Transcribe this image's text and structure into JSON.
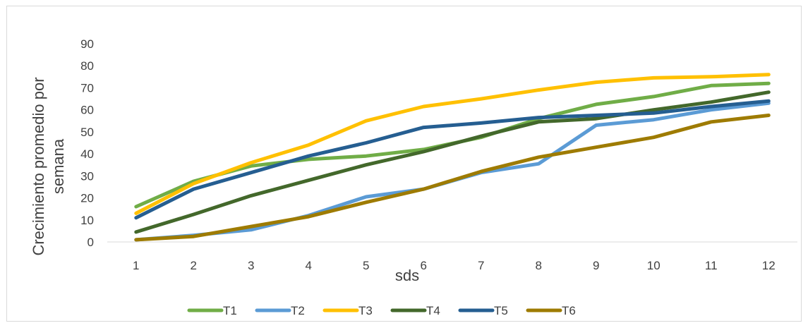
{
  "chart_data": {
    "type": "line",
    "title": "",
    "xlabel": "sds",
    "ylabel": "Crecimiento promedio por semana",
    "ylabel_lines": [
      "Crecimiento promedio por",
      "semana"
    ],
    "ylim": [
      0,
      90
    ],
    "yticks": [
      0,
      10,
      20,
      30,
      40,
      50,
      60,
      70,
      80,
      90
    ],
    "categories": [
      "1",
      "2",
      "3",
      "4",
      "5",
      "6",
      "7",
      "8",
      "9",
      "10",
      "11",
      "12"
    ],
    "grid": false,
    "legend_position": "bottom",
    "series": [
      {
        "name": "T1",
        "color": "#70ad47",
        "values": [
          16,
          27.5,
          34.5,
          37.5,
          39,
          42,
          47.5,
          56,
          62.5,
          66,
          71,
          72
        ]
      },
      {
        "name": "T2",
        "color": "#5b9bd5",
        "values": [
          1,
          3,
          5.5,
          12,
          20.5,
          24,
          31.5,
          35.5,
          53,
          55.5,
          60,
          63
        ]
      },
      {
        "name": "T3",
        "color": "#ffc000",
        "values": [
          13,
          26.5,
          36,
          44,
          55,
          61.5,
          65,
          69,
          72.5,
          74.5,
          75,
          76
        ]
      },
      {
        "name": "T4",
        "color": "#43682b",
        "values": [
          4.5,
          12.5,
          21,
          28,
          35,
          41,
          48,
          54.5,
          56,
          60,
          63.5,
          68
        ]
      },
      {
        "name": "T5",
        "color": "#255e91",
        "values": [
          11,
          24,
          31.5,
          39,
          45,
          52,
          54,
          56.5,
          57.5,
          58.5,
          61.5,
          64
        ]
      },
      {
        "name": "T6",
        "color": "#9e7b00",
        "values": [
          1,
          2.5,
          7,
          11.5,
          18,
          24,
          32,
          38.5,
          43,
          47.5,
          54.5,
          57.5
        ]
      }
    ]
  }
}
